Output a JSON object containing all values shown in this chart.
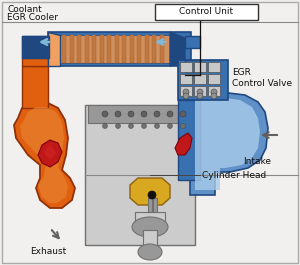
{
  "bg_color": "#f0eeec",
  "border_color": "#aaaaaa",
  "labels": {
    "coolant": "Coolant",
    "egr_cooler": "EGR Cooler",
    "control_unit": "Control Unit",
    "egr_control_valve": "EGR\nControl Valve",
    "intake": "Intake",
    "cylinder_head": "Cylinder Head",
    "exhaust": "Exhaust"
  },
  "colors": {
    "orange_hot": "#E06010",
    "orange_mid": "#E88030",
    "orange_light": "#F0A060",
    "blue_dark": "#204880",
    "blue_med": "#3870B0",
    "blue_light": "#80B8D8",
    "blue_intake": "#6090C8",
    "blue_pale": "#A8CCEA",
    "red_egr": "#C01818",
    "gray_body": "#B0B0B0",
    "gray_light": "#CCCCCC",
    "gray_dark": "#707070",
    "gray_metal": "#989898",
    "yellow_gold": "#D8A820",
    "yellow_light": "#E8C860",
    "white": "#FFFFFF",
    "black": "#111111",
    "arrow_dark": "#606060",
    "line_sep": "#888888"
  }
}
